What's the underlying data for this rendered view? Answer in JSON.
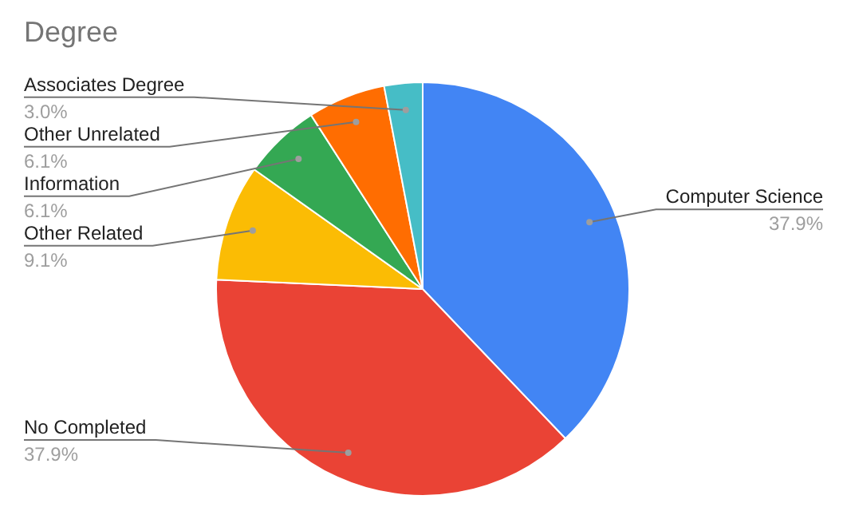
{
  "chart_data": {
    "type": "pie",
    "title": "Degree",
    "categories": [
      "Computer Science",
      "No Completed",
      "Other Related",
      "Information",
      "Other Unrelated",
      "Associates Degree"
    ],
    "values": [
      37.9,
      37.9,
      9.1,
      6.1,
      6.1,
      3.0
    ],
    "value_labels": [
      "37.9%",
      "37.9%",
      "9.1%",
      "6.1%",
      "6.1%",
      "3.0%"
    ],
    "colors": [
      "#4285f4",
      "#ea4335",
      "#fbbc04",
      "#34a853",
      "#ff6d01",
      "#46bdc6"
    ],
    "legend": false
  }
}
